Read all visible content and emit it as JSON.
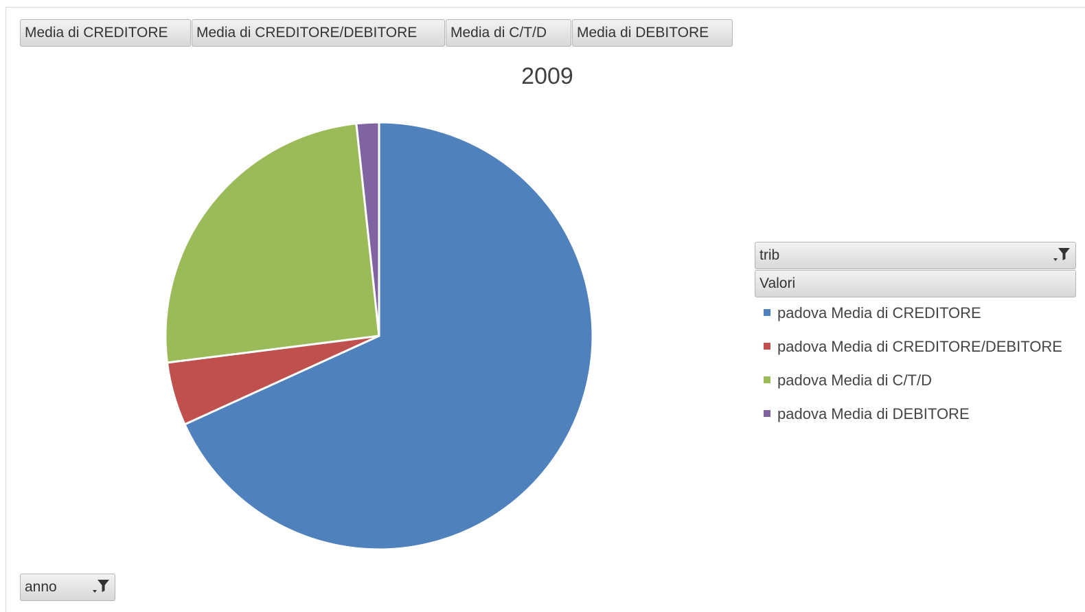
{
  "header_fields": [
    {
      "label": "Media di CREDITORE"
    },
    {
      "label": "Media di CREDITORE/DEBITORE"
    },
    {
      "label": "Media di C/T/D"
    },
    {
      "label": "Media di DEBITORE"
    }
  ],
  "row_field": {
    "label": "trib"
  },
  "values_field": {
    "label": "Valori"
  },
  "page_filter": {
    "label": "anno"
  },
  "icons": {
    "filter": "filter-dropdown-icon"
  },
  "chart_data": {
    "type": "pie",
    "title": "2009",
    "legend_position": "right",
    "slices": [
      {
        "label": "padova Media di CREDITORE",
        "value": 68.2,
        "color": "#4F81BD"
      },
      {
        "label": "padova Media di CREDITORE/DEBITORE",
        "value": 4.8,
        "color": "#C0504D"
      },
      {
        "label": "padova Media di C/T/D",
        "value": 25.3,
        "color": "#9BBB59"
      },
      {
        "label": "padova Media di DEBITORE",
        "value": 1.7,
        "color": "#8064A2"
      }
    ]
  }
}
